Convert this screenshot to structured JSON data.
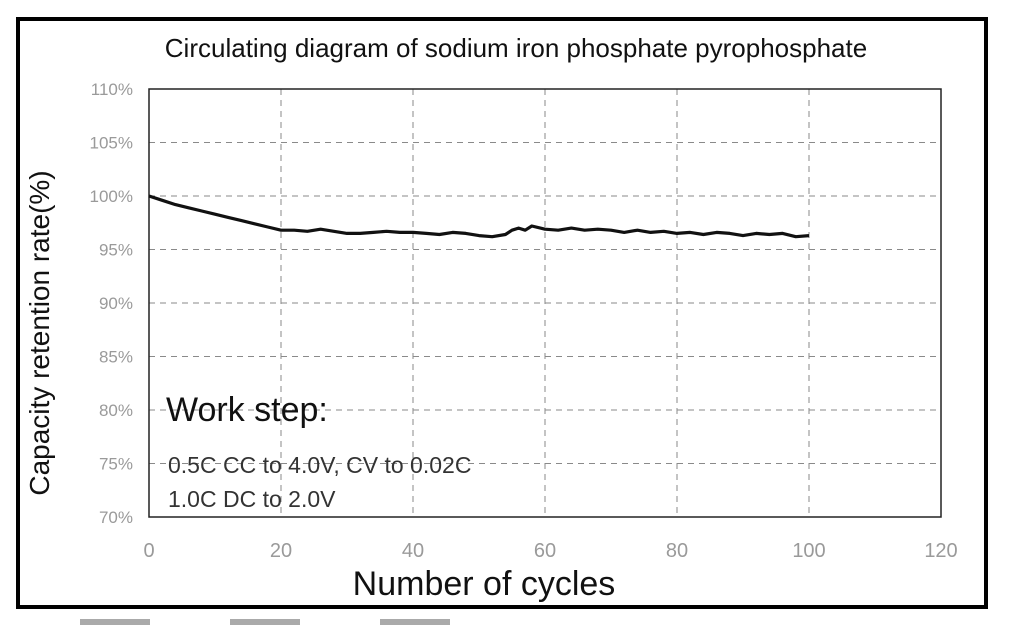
{
  "chart_data": {
    "type": "line",
    "title": "Circulating diagram of sodium iron phosphate pyrophosphate",
    "xlabel": "Number of cycles",
    "ylabel": "Capacity retention rate(%)",
    "xlim": [
      0,
      120
    ],
    "ylim": [
      70,
      110
    ],
    "x_ticks": [
      0,
      20,
      40,
      60,
      80,
      100,
      120
    ],
    "x_tick_labels": [
      "0",
      "20",
      "40",
      "60",
      "80",
      "100",
      "120"
    ],
    "y_ticks": [
      70,
      75,
      80,
      85,
      90,
      95,
      100,
      105,
      110
    ],
    "y_tick_labels": [
      "70%",
      "75%",
      "80%",
      "85%",
      "90%",
      "95%",
      "100%",
      "105%",
      "110%"
    ],
    "grid": true,
    "series": [
      {
        "name": "Capacity retention",
        "color": "#111111",
        "x": [
          0,
          2,
          4,
          6,
          8,
          10,
          12,
          14,
          16,
          18,
          20,
          22,
          24,
          26,
          28,
          30,
          32,
          34,
          36,
          38,
          40,
          42,
          44,
          46,
          48,
          50,
          52,
          54,
          55,
          56,
          57,
          58,
          60,
          62,
          64,
          66,
          68,
          70,
          72,
          74,
          76,
          78,
          80,
          82,
          84,
          86,
          88,
          90,
          92,
          94,
          96,
          98,
          100
        ],
        "values": [
          100,
          99.6,
          99.2,
          98.9,
          98.6,
          98.3,
          98.0,
          97.7,
          97.4,
          97.1,
          96.8,
          96.8,
          96.7,
          96.9,
          96.7,
          96.5,
          96.5,
          96.6,
          96.7,
          96.6,
          96.6,
          96.5,
          96.4,
          96.6,
          96.5,
          96.3,
          96.2,
          96.4,
          96.8,
          97.0,
          96.8,
          97.2,
          96.9,
          96.8,
          97.0,
          96.8,
          96.9,
          96.8,
          96.6,
          96.8,
          96.6,
          96.7,
          96.5,
          96.6,
          96.4,
          96.6,
          96.5,
          96.3,
          96.5,
          96.4,
          96.5,
          96.2,
          96.3
        ]
      }
    ],
    "annotation": {
      "heading": "Work step:",
      "line1": "0.5C CC to 4.0V, CV to 0.02C",
      "line2": "1.0C DC to 2.0V"
    }
  }
}
